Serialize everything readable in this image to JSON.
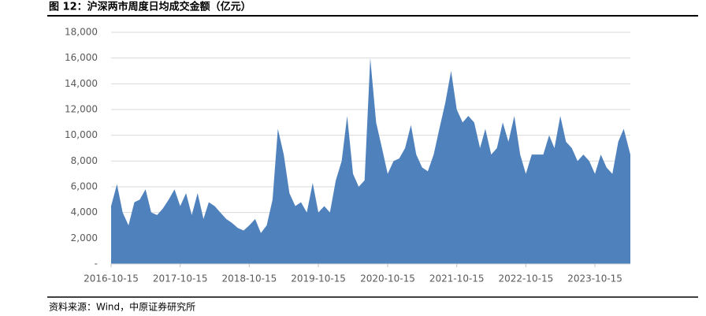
{
  "chart_data": {
    "type": "area",
    "title": "图 12：沪深两市周度日均成交金额（亿元）",
    "source": "资料来源：Wind，中原证券研究所",
    "color": "#4f81bd",
    "x": [
      "2016-10-15",
      "2016-11-15",
      "2016-12-15",
      "2017-01-15",
      "2017-02-15",
      "2017-03-15",
      "2017-04-15",
      "2017-05-15",
      "2017-06-15",
      "2017-07-15",
      "2017-08-15",
      "2017-09-15",
      "2017-10-15",
      "2017-11-15",
      "2017-12-15",
      "2018-01-15",
      "2018-02-15",
      "2018-03-15",
      "2018-04-15",
      "2018-05-15",
      "2018-06-15",
      "2018-07-15",
      "2018-08-15",
      "2018-09-15",
      "2018-10-15",
      "2018-11-15",
      "2018-12-15",
      "2019-01-15",
      "2019-02-15",
      "2019-03-15",
      "2019-04-15",
      "2019-05-15",
      "2019-06-15",
      "2019-07-15",
      "2019-08-15",
      "2019-09-15",
      "2019-10-15",
      "2019-11-15",
      "2019-12-15",
      "2020-01-15",
      "2020-02-15",
      "2020-03-15",
      "2020-04-15",
      "2020-05-15",
      "2020-06-15",
      "2020-07-15",
      "2020-08-15",
      "2020-09-15",
      "2020-10-15",
      "2020-11-15",
      "2020-12-15",
      "2021-01-15",
      "2021-02-15",
      "2021-03-15",
      "2021-04-15",
      "2021-05-15",
      "2021-06-15",
      "2021-07-15",
      "2021-08-15",
      "2021-09-15",
      "2021-10-15",
      "2021-11-15",
      "2021-12-15",
      "2022-01-15",
      "2022-02-15",
      "2022-03-15",
      "2022-04-15",
      "2022-05-15",
      "2022-06-15",
      "2022-07-15",
      "2022-08-15",
      "2022-09-15",
      "2022-10-15",
      "2022-11-15",
      "2022-12-15",
      "2023-01-15",
      "2023-02-15",
      "2023-03-15",
      "2023-04-15",
      "2023-05-15",
      "2023-06-15",
      "2023-07-15",
      "2023-08-15",
      "2023-09-15",
      "2023-10-15",
      "2023-11-15",
      "2023-12-15",
      "2024-01-15",
      "2024-02-15",
      "2024-03-15",
      "2024-04-19"
    ],
    "values": [
      4500,
      6200,
      4000,
      3000,
      4800,
      5000,
      5800,
      4000,
      3800,
      4300,
      5000,
      5800,
      4500,
      5500,
      3800,
      5500,
      3500,
      4800,
      4500,
      4000,
      3500,
      3200,
      2800,
      2600,
      3000,
      3500,
      2400,
      3000,
      5000,
      10500,
      8500,
      5500,
      4500,
      4800,
      4000,
      6300,
      4000,
      4500,
      4000,
      6500,
      8000,
      11500,
      7000,
      6000,
      6500,
      16000,
      11000,
      9000,
      7000,
      8000,
      8200,
      9000,
      10800,
      8500,
      7500,
      7200,
      8500,
      10500,
      12500,
      15000,
      12000,
      11000,
      11500,
      11000,
      9000,
      10500,
      8500,
      9000,
      11000,
      9500,
      11500,
      8500,
      7000,
      8500,
      8500,
      8500,
      10000,
      9000,
      11500,
      9500,
      9000,
      8000,
      8500,
      8000,
      7000,
      8500,
      7500,
      7000,
      9500,
      10500,
      8500
    ],
    "xlim": [
      "2016-10-15",
      "2024-04-19"
    ],
    "xticks": [
      "2016-10-15",
      "2017-10-15",
      "2018-10-15",
      "2019-10-15",
      "2020-10-15",
      "2021-10-15",
      "2022-10-15",
      "2023-10-15"
    ],
    "ylim": [
      0,
      18000
    ],
    "yticks": [
      {
        "value": 0,
        "label": "-"
      },
      {
        "value": 2000,
        "label": "2,000"
      },
      {
        "value": 4000,
        "label": "4,000"
      },
      {
        "value": 6000,
        "label": "6,000"
      },
      {
        "value": 8000,
        "label": "8,000"
      },
      {
        "value": 10000,
        "label": "10,000"
      },
      {
        "value": 12000,
        "label": "12,000"
      },
      {
        "value": 14000,
        "label": "14,000"
      },
      {
        "value": 16000,
        "label": "16,000"
      },
      {
        "value": 18000,
        "label": "18,000"
      }
    ],
    "grid": true
  }
}
